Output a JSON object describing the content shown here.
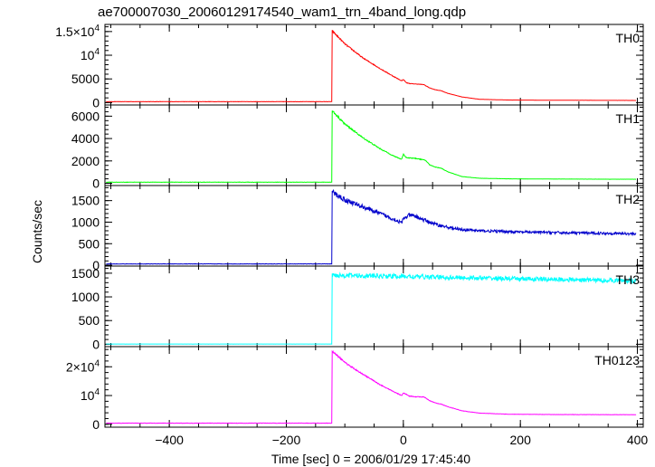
{
  "chart_data": {
    "type": "line",
    "title": "ae700007030_20060129174540_wam1_trn_4band_long.qdp",
    "xlabel": "Time [sec] 0 = 2006/01/29 17:45:40",
    "ylabel": "Counts/sec",
    "xlim": [
      -510,
      410
    ],
    "xticks": [
      {
        "value": -400,
        "label": "−400"
      },
      {
        "value": -200,
        "label": "−200"
      },
      {
        "value": 0,
        "label": "0"
      },
      {
        "value": 200,
        "label": "200"
      },
      {
        "value": 400,
        "label": "400"
      }
    ],
    "panels": [
      {
        "name": "TH0",
        "color": "#ff0000",
        "ylim": [
          -500,
          16500
        ],
        "yticks": [
          {
            "value": 0,
            "label": "0"
          },
          {
            "value": 5000,
            "label": "5000"
          },
          {
            "value": 10000,
            "label": "10",
            "sup": "4"
          },
          {
            "value": 15000,
            "label": "1.5×10",
            "sup": "4"
          }
        ],
        "background": 200,
        "onset": -122,
        "noise": 0.012,
        "series": [
          [
            -122,
            15200
          ],
          [
            -100,
            12400
          ],
          [
            -70,
            9500
          ],
          [
            -40,
            7200
          ],
          [
            -15,
            5400
          ],
          [
            -3,
            4600
          ],
          [
            0,
            4900
          ],
          [
            5,
            4200
          ],
          [
            12,
            4000
          ],
          [
            25,
            3900
          ],
          [
            35,
            3800
          ],
          [
            45,
            3100
          ],
          [
            55,
            2700
          ],
          [
            65,
            2500
          ],
          [
            75,
            2000
          ],
          [
            100,
            1200
          ],
          [
            130,
            700
          ],
          [
            180,
            550
          ],
          [
            250,
            500
          ],
          [
            400,
            460
          ]
        ]
      },
      {
        "name": "TH1",
        "color": "#00ff00",
        "ylim": [
          -200,
          7000
        ],
        "yticks": [
          {
            "value": 0,
            "label": "0"
          },
          {
            "value": 2000,
            "label": "2000"
          },
          {
            "value": 4000,
            "label": "4000"
          },
          {
            "value": 6000,
            "label": "6000"
          }
        ],
        "background": 100,
        "onset": -122,
        "noise": 0.015,
        "series": [
          [
            -122,
            6500
          ],
          [
            -100,
            5300
          ],
          [
            -70,
            4100
          ],
          [
            -40,
            3100
          ],
          [
            -15,
            2400
          ],
          [
            -3,
            2150
          ],
          [
            0,
            2600
          ],
          [
            5,
            2300
          ],
          [
            15,
            2250
          ],
          [
            25,
            2200
          ],
          [
            38,
            2050
          ],
          [
            45,
            1650
          ],
          [
            55,
            1450
          ],
          [
            65,
            1350
          ],
          [
            75,
            1050
          ],
          [
            100,
            600
          ],
          [
            130,
            450
          ],
          [
            180,
            400
          ],
          [
            250,
            380
          ],
          [
            400,
            360
          ]
        ]
      },
      {
        "name": "TH2",
        "color": "#0000cc",
        "ylim": [
          -20,
          1850
        ],
        "yticks": [
          {
            "value": 0,
            "label": "0"
          },
          {
            "value": 500,
            "label": "500"
          },
          {
            "value": 1000,
            "label": "1000"
          },
          {
            "value": 1500,
            "label": "1500"
          }
        ],
        "background": 30,
        "onset": -122,
        "noise": 0.04,
        "series": [
          [
            -122,
            1700
          ],
          [
            -100,
            1520
          ],
          [
            -70,
            1360
          ],
          [
            -40,
            1200
          ],
          [
            -15,
            1060
          ],
          [
            -3,
            980
          ],
          [
            0,
            1080
          ],
          [
            10,
            1160
          ],
          [
            20,
            1140
          ],
          [
            35,
            1050
          ],
          [
            60,
            930
          ],
          [
            90,
            840
          ],
          [
            130,
            800
          ],
          [
            200,
            770
          ],
          [
            300,
            750
          ],
          [
            400,
            730
          ]
        ]
      },
      {
        "name": "TH3",
        "color": "#00ffff",
        "ylim": [
          -50,
          1650
        ],
        "yticks": [
          {
            "value": 0,
            "label": "0"
          },
          {
            "value": 500,
            "label": "500"
          },
          {
            "value": 1000,
            "label": "1000"
          },
          {
            "value": 1500,
            "label": "1500"
          }
        ],
        "background": 5,
        "onset": -122,
        "noise": 0.035,
        "series": [
          [
            -122,
            1460
          ],
          [
            0,
            1430
          ],
          [
            200,
            1380
          ],
          [
            400,
            1340
          ]
        ]
      },
      {
        "name": "TH0123",
        "color": "#ff00ff",
        "ylim": [
          -1000,
          27000
        ],
        "yticks": [
          {
            "value": 0,
            "label": "0"
          },
          {
            "value": 10000,
            "label": "10",
            "sup": "4"
          },
          {
            "value": 20000,
            "label": "2×10",
            "sup": "4"
          }
        ],
        "background": 400,
        "onset": -122,
        "noise": 0.012,
        "series": [
          [
            -122,
            25500
          ],
          [
            -100,
            21500
          ],
          [
            -70,
            17500
          ],
          [
            -40,
            13800
          ],
          [
            -15,
            11200
          ],
          [
            -3,
            10000
          ],
          [
            0,
            11000
          ],
          [
            10,
            9800
          ],
          [
            20,
            9600
          ],
          [
            35,
            9500
          ],
          [
            45,
            8200
          ],
          [
            55,
            7400
          ],
          [
            65,
            7000
          ],
          [
            75,
            6200
          ],
          [
            100,
            4700
          ],
          [
            130,
            3900
          ],
          [
            180,
            3500
          ],
          [
            250,
            3400
          ],
          [
            400,
            3350
          ]
        ]
      }
    ],
    "grid": false,
    "legend": "panel labels top-right"
  }
}
